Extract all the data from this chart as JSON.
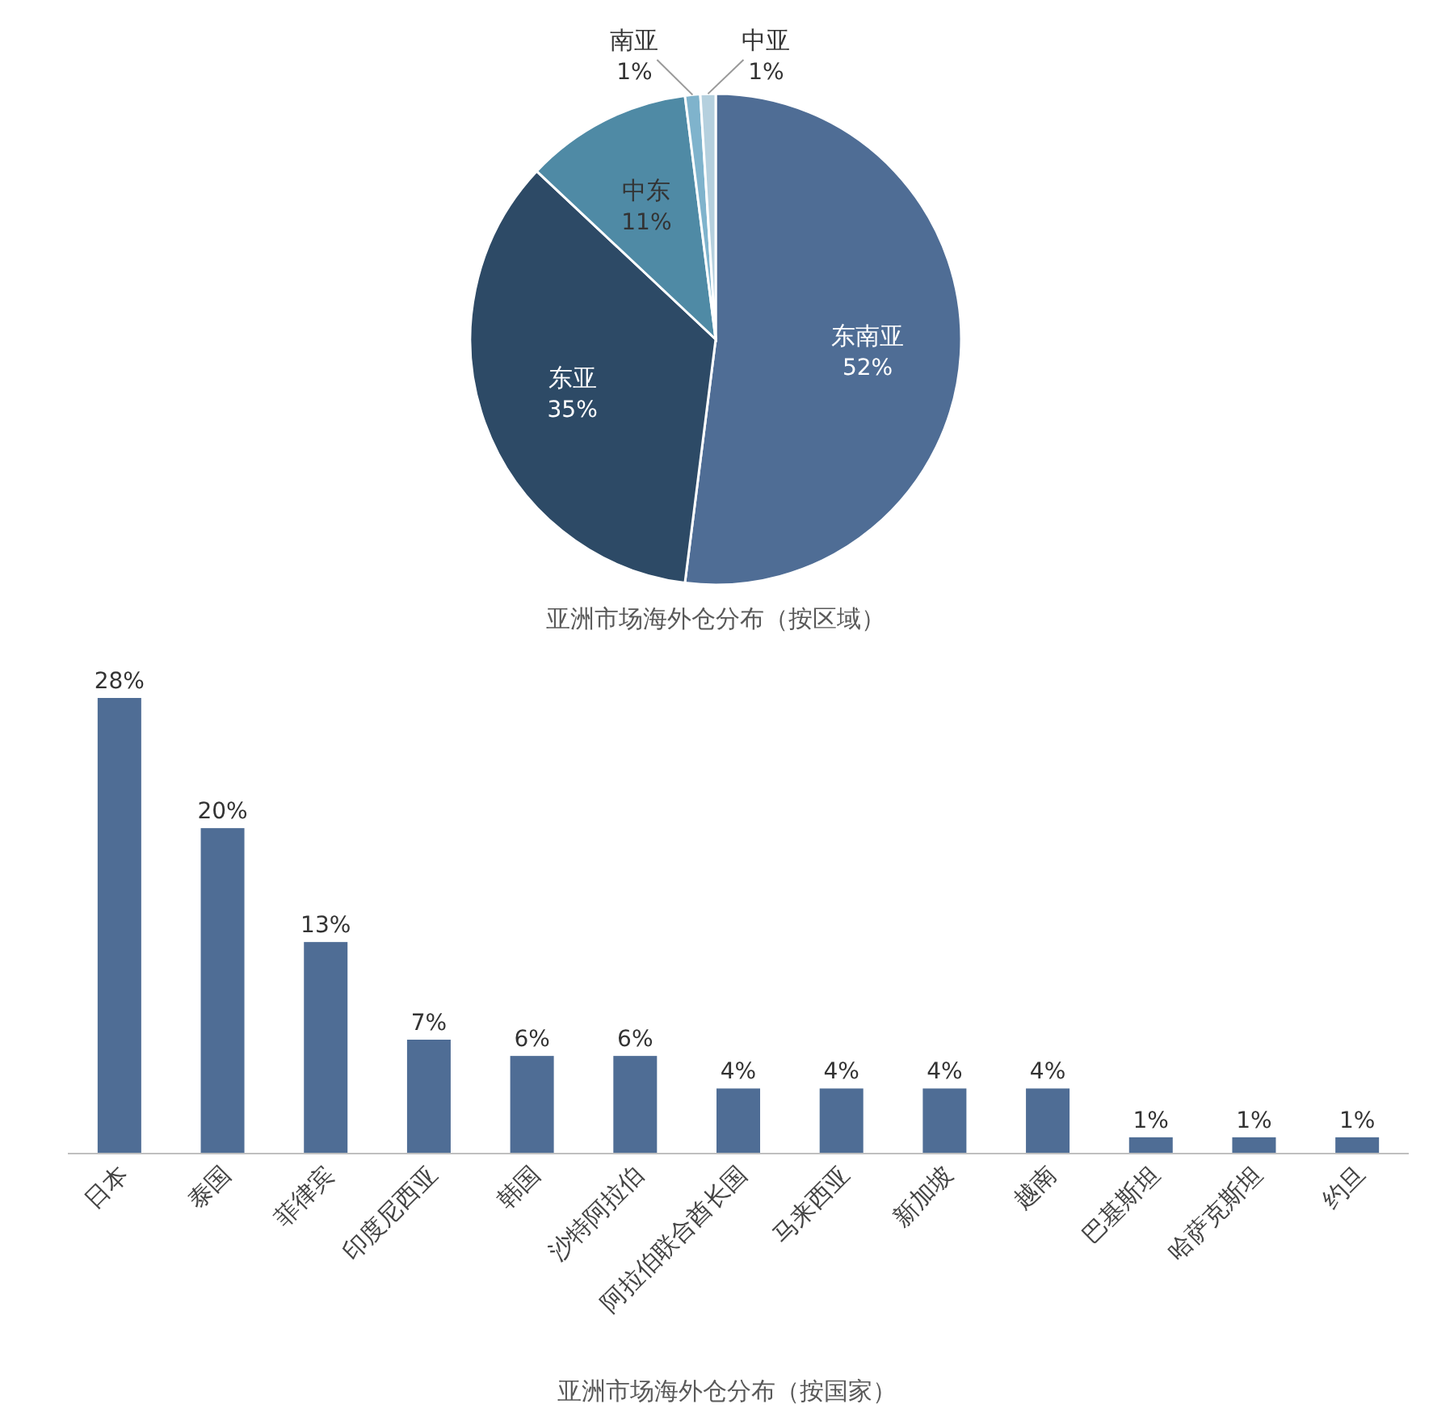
{
  "chart_data": [
    {
      "type": "pie",
      "title": "亚洲市场海外仓分布（按区域）",
      "categories": [
        "东南亚",
        "东亚",
        "中东",
        "南亚",
        "中亚"
      ],
      "values": [
        52,
        35,
        11,
        1,
        1
      ],
      "value_labels": [
        "52%",
        "35%",
        "11%",
        "1%",
        "1%"
      ],
      "colors": [
        "#4f6d95",
        "#2d4a66",
        "#4f8aa5",
        "#7fb3cc",
        "#b5d0de"
      ]
    },
    {
      "type": "bar",
      "title": "亚洲市场海外仓分布（按国家）",
      "categories": [
        "日本",
        "泰国",
        "菲律宾",
        "印度尼西亚",
        "韩国",
        "沙特阿拉伯",
        "阿拉伯联合酋长国",
        "马来西亚",
        "新加坡",
        "越南",
        "巴基斯坦",
        "哈萨克斯坦",
        "约旦"
      ],
      "values": [
        28,
        20,
        13,
        7,
        6,
        6,
        4,
        4,
        4,
        4,
        1,
        1,
        1
      ],
      "value_labels": [
        "28%",
        "20%",
        "13%",
        "7%",
        "6%",
        "6%",
        "4%",
        "4%",
        "4%",
        "4%",
        "1%",
        "1%",
        "1%"
      ],
      "color": "#4f6d95"
    }
  ]
}
